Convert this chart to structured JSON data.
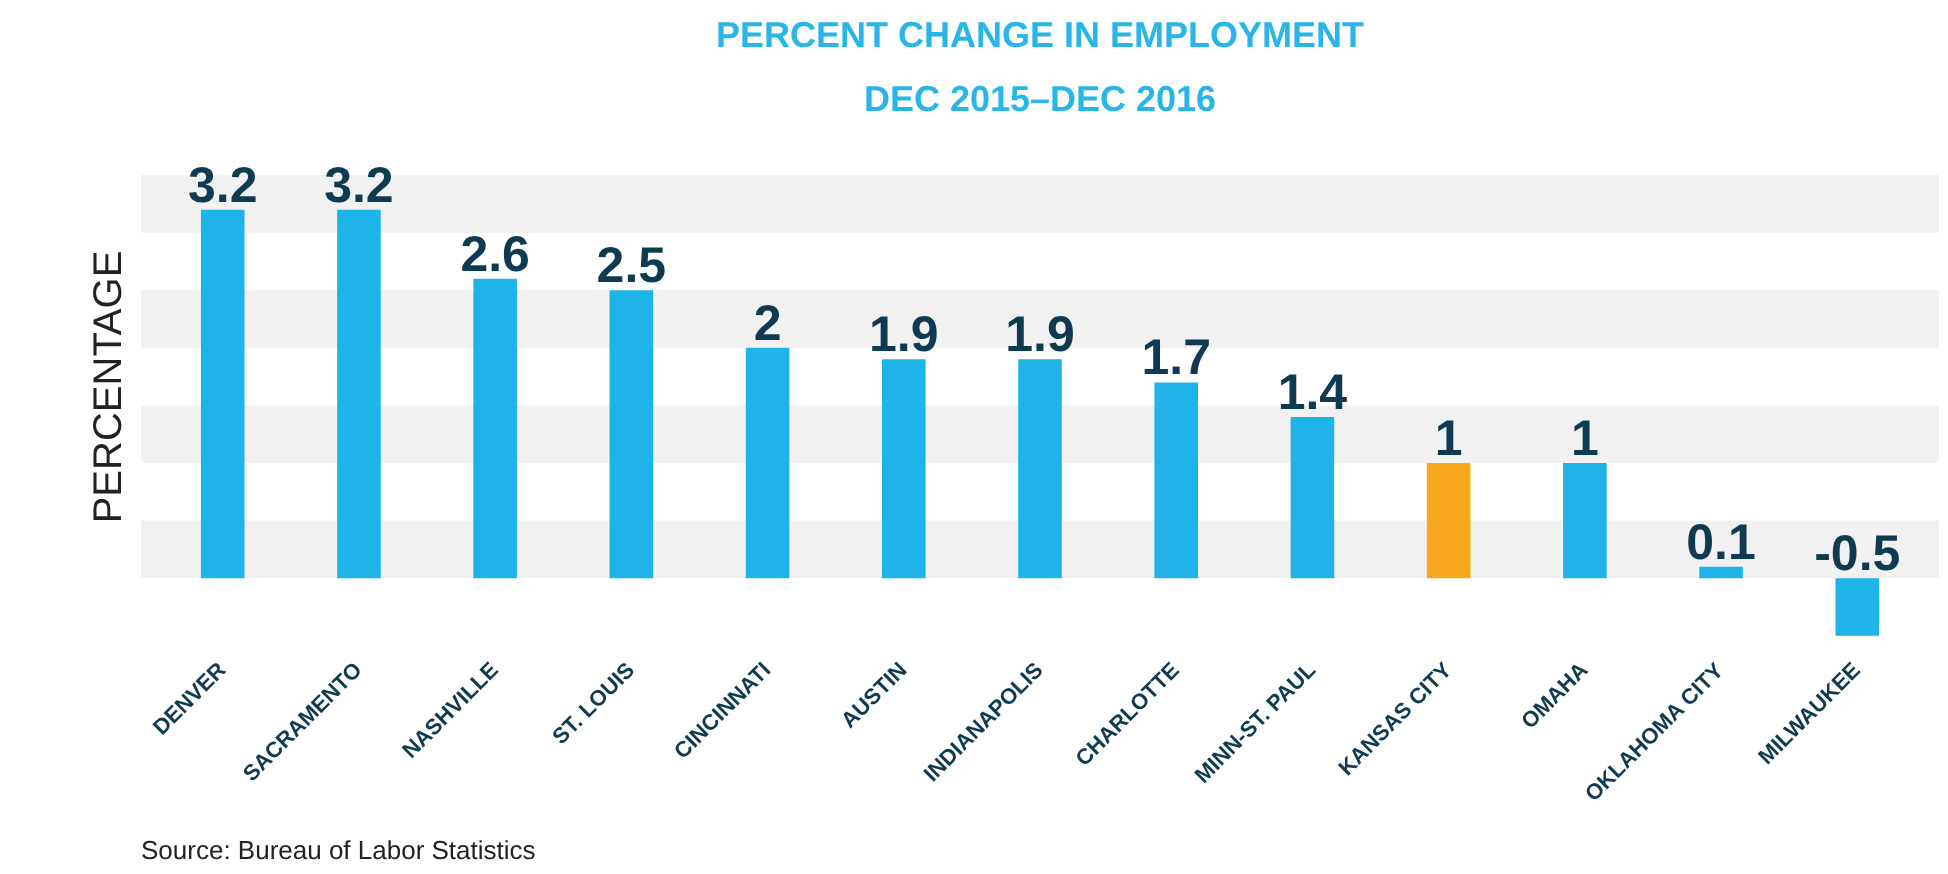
{
  "chart_data": {
    "type": "bar",
    "title": "PERCENT CHANGE IN EMPLOYMENT",
    "subtitle": "DEC 2015–DEC 2016",
    "ylabel": "PERCENTAGE",
    "categories": [
      "DENVER",
      "SACRAMENTO",
      "NASHVILLE",
      "ST. LOUIS",
      "CINCINNATI",
      "AUSTIN",
      "INDIANAPOLIS",
      "CHARLOTTE",
      "MINN-ST. PAUL",
      "KANSAS CITY",
      "OMAHA",
      "OKLAHOMA CITY",
      "MILWAUKEE"
    ],
    "values": [
      3.2,
      3.2,
      2.6,
      2.5,
      2,
      1.9,
      1.9,
      1.7,
      1.4,
      1,
      1,
      0.1,
      -0.5
    ],
    "colors": [
      "#1fb4e9",
      "#1fb4e9",
      "#1fb4e9",
      "#1fb4e9",
      "#1fb4e9",
      "#1fb4e9",
      "#1fb4e9",
      "#1fb4e9",
      "#1fb4e9",
      "#f8a81d",
      "#1fb4e9",
      "#1fb4e9",
      "#1fb4e9"
    ],
    "bands": [
      {
        "axis": "y",
        "from": 0,
        "to": 0.5,
        "color": "#f1f1f1"
      },
      {
        "axis": "y",
        "from": 1,
        "to": 1.5,
        "color": "#f1f1f1"
      },
      {
        "axis": "y",
        "from": 2,
        "to": 2.5,
        "color": "#f1f1f1"
      },
      {
        "axis": "y",
        "from": 3,
        "to": 3.5,
        "color": "#f1f1f1"
      }
    ],
    "data_labels": true,
    "grid": false,
    "annotations": [
      "Source: Bureau of Labor Statistics"
    ]
  }
}
